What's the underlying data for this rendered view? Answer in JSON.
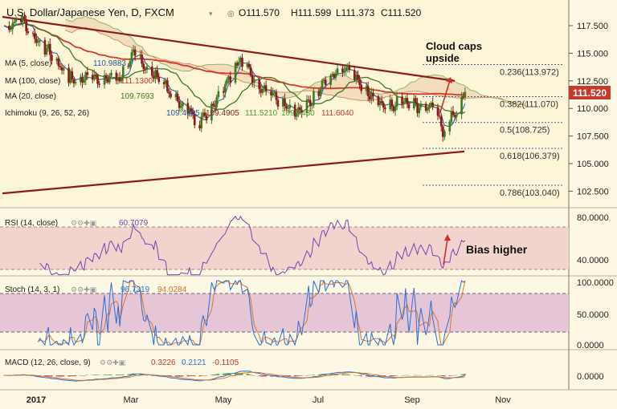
{
  "header": {
    "title": "U.S. Dollar/Japanese Yen, D, FXCM",
    "open": "O111.570",
    "high": "H111.599",
    "low": "L111.373",
    "close": "C111.520"
  },
  "price_panel": {
    "legend": [
      {
        "label": "MA (5, close)",
        "value": "110.9883",
        "color": "#2a57a0"
      },
      {
        "label": "MA (100, close)",
        "value": "111.1300",
        "color": "#c53a2c"
      },
      {
        "label": "MA (20, close)",
        "value": "109.7693",
        "color": "#3d7a23"
      },
      {
        "label": "Ichimoku (9, 26, 52, 26)",
        "values": [
          {
            "v": "109.4905",
            "color": "#2a57a0"
          },
          {
            "v": "109.4905",
            "color": "#8b1a1a"
          },
          {
            "v": "111.5210",
            "color": "#4f9a3a"
          },
          {
            "v": "109.7430",
            "color": "#4f9a3a"
          },
          {
            "v": "111.6040",
            "color": "#c53a2c"
          }
        ]
      }
    ],
    "current_price": "111.520",
    "y_ticks": [
      "117.500",
      "115.000",
      "112.500",
      "110.000",
      "107.500",
      "105.000",
      "102.500"
    ],
    "fib_levels": [
      {
        "label": "0.236(113.972)",
        "price": 113.972
      },
      {
        "label": "0.382(111.070)",
        "price": 111.07
      },
      {
        "label": "0.5(108.725)",
        "price": 108.725
      },
      {
        "label": "0.618(106.379)",
        "price": 106.379
      },
      {
        "label": "0.786(103.040)",
        "price": 103.04
      }
    ],
    "annotation": "Cloud caps\nupside"
  },
  "rsi_panel": {
    "legend": "RSI (14, close)",
    "value": "60.7079",
    "y_ticks": [
      "80.0000",
      "40.0000"
    ],
    "annotation": "Bias higher"
  },
  "stoch_panel": {
    "legend": "Stoch (14, 3, 1)",
    "k_value": "96.7319",
    "d_value": "94.0284",
    "y_ticks": [
      "100.0000",
      "50.0000",
      "0.0000"
    ]
  },
  "macd_panel": {
    "legend": "MACD (12, 26, close, 9)",
    "values": [
      {
        "v": "0.3226",
        "color": "#c53a2c"
      },
      {
        "v": "0.2121",
        "color": "#2a6fd6"
      },
      {
        "v": "-0.1105",
        "color": "#c53a2c"
      }
    ],
    "y_ticks": [
      "0.0000"
    ]
  },
  "x_axis": {
    "labels": [
      "2017",
      "Mar",
      "May",
      "Jul",
      "Sep",
      "Nov"
    ]
  },
  "colors": {
    "background": "#fdf8e3",
    "bull_candle": "#3d7a23",
    "bear_candle": "#8b1a1a",
    "ma100": "#d43a2c",
    "ma20": "#3d7a23",
    "ma5": "#2a57a0",
    "trendline": "#8b1a1a",
    "rsi_band": "#f2d4cf",
    "stoch_band": "#e6c6d6",
    "current_price_box": "#c53a2c"
  },
  "chart_data": [
    {
      "type": "candlestick",
      "title": "U.S. Dollar/Japanese Yen, D, FXCM",
      "ylim": [
        101.3,
        119.3
      ],
      "x_range": [
        "2016-12-22",
        "2017-11-20"
      ],
      "monthly_closes_approx": [
        {
          "date": "2016-12-23",
          "close": 117.5
        },
        {
          "date": "2017-01-03",
          "close": 117.8
        },
        {
          "date": "2017-01-31",
          "close": 112.8
        },
        {
          "date": "2017-02-28",
          "close": 112.8
        },
        {
          "date": "2017-03-10",
          "close": 114.9
        },
        {
          "date": "2017-03-31",
          "close": 111.4
        },
        {
          "date": "2017-04-17",
          "close": 108.6
        },
        {
          "date": "2017-05-10",
          "close": 114.2
        },
        {
          "date": "2017-05-31",
          "close": 110.8
        },
        {
          "date": "2017-06-15",
          "close": 109.5
        },
        {
          "date": "2017-06-30",
          "close": 112.4
        },
        {
          "date": "2017-07-11",
          "close": 114.0
        },
        {
          "date": "2017-07-31",
          "close": 110.3
        },
        {
          "date": "2017-08-15",
          "close": 110.6
        },
        {
          "date": "2017-08-31",
          "close": 110.0
        },
        {
          "date": "2017-09-08",
          "close": 107.8
        },
        {
          "date": "2017-09-20",
          "close": 111.5
        }
      ]
    },
    {
      "type": "line",
      "name": "RSI (14, close)",
      "ylim": [
        25,
        85
      ],
      "overbought": 70,
      "oversold": 30
    },
    {
      "type": "line",
      "name": "Stoch (14, 3, 1)",
      "ylim": [
        -5,
        105
      ],
      "overbought": 80,
      "oversold": 20
    },
    {
      "type": "bar",
      "name": "MACD (12, 26, close, 9)"
    }
  ]
}
